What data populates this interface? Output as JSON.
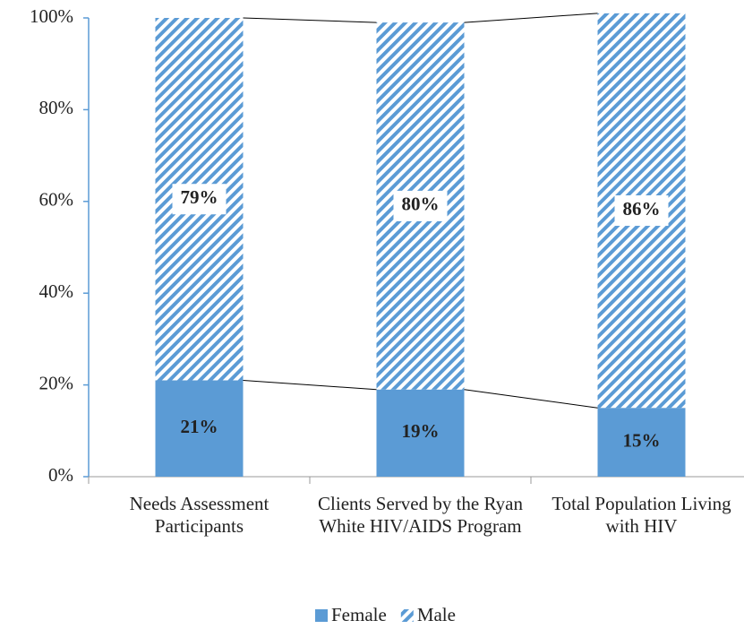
{
  "chart_data": {
    "type": "stacked_bar",
    "categories": [
      "Needs Assessment Participants",
      "Clients Served by the Ryan White HIV/AIDS Program",
      "Total Population Living with HIV"
    ],
    "series": [
      {
        "name": "Female",
        "color": "#5b9bd5",
        "values": [
          21,
          19,
          15
        ],
        "value_labels": [
          "21%",
          "19%",
          "15%"
        ]
      },
      {
        "name": "Male",
        "color": "#5b9bd5",
        "pattern": "hatch",
        "values": [
          79,
          80,
          86
        ],
        "value_labels": [
          "79%",
          "80%",
          "86%"
        ]
      }
    ],
    "ylim": [
      0,
      100
    ],
    "yticks": [
      {
        "value": 0,
        "label": "0%"
      },
      {
        "value": 20,
        "label": "20%"
      },
      {
        "value": 40,
        "label": "40%"
      },
      {
        "value": 60,
        "label": "60%"
      },
      {
        "value": 80,
        "label": "80%"
      },
      {
        "value": 100,
        "label": "100%"
      }
    ],
    "legend": "bottom"
  }
}
